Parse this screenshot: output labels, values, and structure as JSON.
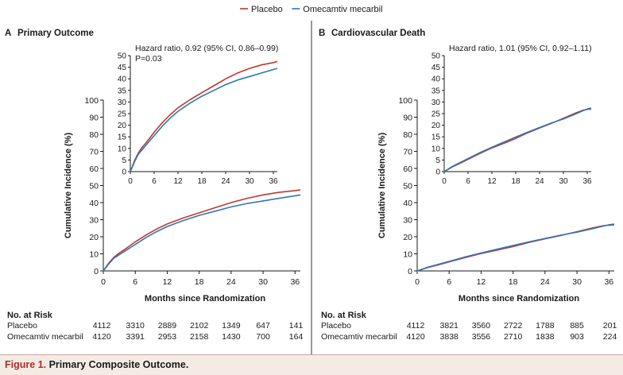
{
  "legend": {
    "items": [
      {
        "label": "Placebo",
        "color": "#c0392b"
      },
      {
        "label": "Omecamtiv mecarbil",
        "color": "#2e78b7"
      }
    ]
  },
  "caption": {
    "label": "Figure 1.",
    "text": "Primary Composite Outcome."
  },
  "risk_table": {
    "heading": "No. at Risk",
    "row_labels": [
      "Placebo",
      "Omecamtiv mecarbil"
    ]
  },
  "chart_data": [
    {
      "type": "line",
      "panel_letter": "A",
      "title": "Primary Outcome",
      "xlabel": "Months since Randomization",
      "ylabel": "Cumulative Incidence (%)",
      "xlim": [
        0,
        37
      ],
      "ylim": [
        0,
        100
      ],
      "xticks": [
        0,
        6,
        12,
        18,
        24,
        30,
        36
      ],
      "yticks": [
        0,
        10,
        20,
        30,
        40,
        50,
        60,
        70,
        80,
        90,
        100
      ],
      "series": [
        {
          "name": "Placebo",
          "color": "#c0392b",
          "x": [
            0,
            1,
            2,
            3,
            4,
            6,
            8,
            10,
            12,
            15,
            18,
            21,
            24,
            27,
            30,
            33,
            36,
            37
          ],
          "y": [
            0,
            4.5,
            8,
            10.5,
            12.5,
            17,
            21,
            24.5,
            27.5,
            31,
            34,
            37,
            40,
            42.5,
            44.5,
            46,
            47,
            47.5
          ]
        },
        {
          "name": "Omecamtiv mecarbil",
          "color": "#2e78b7",
          "x": [
            0,
            1,
            2,
            3,
            4,
            6,
            8,
            10,
            12,
            15,
            18,
            21,
            24,
            27,
            30,
            33,
            36,
            37
          ],
          "y": [
            0,
            4,
            7.5,
            9.5,
            11.5,
            15.5,
            19.5,
            23,
            26,
            29.5,
            32.5,
            35,
            37.5,
            39.5,
            41,
            42.5,
            44,
            44.5
          ]
        }
      ],
      "inset": {
        "xlim": [
          0,
          37
        ],
        "ylim": [
          0,
          50
        ],
        "xticks": [
          0,
          6,
          12,
          18,
          24,
          30,
          36
        ],
        "yticks": [
          0,
          5,
          10,
          15,
          20,
          25,
          30,
          35,
          40,
          45,
          50
        ],
        "annotation_lines": [
          "Hazard ratio, 0.92 (95% CI, 0.86–0.99)",
          "P=0.03"
        ]
      },
      "risk_table": {
        "times": [
          0,
          6,
          12,
          18,
          24,
          30,
          36
        ],
        "rows": [
          [
            "4112",
            "3310",
            "2889",
            "2102",
            "1349",
            "647",
            "141"
          ],
          [
            "4120",
            "3391",
            "2953",
            "2158",
            "1430",
            "700",
            "164"
          ]
        ]
      }
    },
    {
      "type": "line",
      "panel_letter": "B",
      "title": "Cardiovascular Death",
      "xlabel": "Months since Randomization",
      "ylabel": "Cumulative Incidence (%)",
      "xlim": [
        0,
        37
      ],
      "ylim": [
        0,
        100
      ],
      "xticks": [
        0,
        6,
        12,
        18,
        24,
        30,
        36
      ],
      "yticks": [
        0,
        10,
        20,
        30,
        40,
        50,
        60,
        70,
        80,
        90,
        100
      ],
      "series": [
        {
          "name": "Placebo",
          "color": "#c0392b",
          "x": [
            0,
            2,
            4,
            6,
            9,
            12,
            15,
            18,
            21,
            24,
            27,
            30,
            33,
            35,
            36,
            37
          ],
          "y": [
            0,
            2,
            3.6,
            5.3,
            7.8,
            10.2,
            12.2,
            14.3,
            16.7,
            18.8,
            20.8,
            23,
            25.2,
            26.5,
            26.8,
            27
          ]
        },
        {
          "name": "Omecamtiv mecarbil",
          "color": "#2e78b7",
          "x": [
            0,
            2,
            4,
            6,
            9,
            12,
            15,
            18,
            21,
            24,
            27,
            30,
            33,
            35,
            36,
            37
          ],
          "y": [
            0,
            2.2,
            3.9,
            5.6,
            8.2,
            10.5,
            12.7,
            14.9,
            17,
            19,
            21,
            22.7,
            24.8,
            26.3,
            27,
            27.4
          ]
        }
      ],
      "inset": {
        "xlim": [
          0,
          37
        ],
        "ylim": [
          0,
          50
        ],
        "xticks": [
          0,
          6,
          12,
          18,
          24,
          30,
          36
        ],
        "yticks": [
          0,
          5,
          10,
          15,
          20,
          25,
          30,
          35,
          40,
          45,
          50
        ],
        "annotation_lines": [
          "Hazard ratio, 1.01 (95% CI, 0.92–1.11)"
        ]
      },
      "risk_table": {
        "times": [
          0,
          6,
          12,
          18,
          24,
          30,
          36
        ],
        "rows": [
          [
            "4112",
            "3821",
            "3560",
            "2722",
            "1788",
            "885",
            "201"
          ],
          [
            "4120",
            "3838",
            "3556",
            "2710",
            "1838",
            "903",
            "224"
          ]
        ]
      }
    }
  ]
}
